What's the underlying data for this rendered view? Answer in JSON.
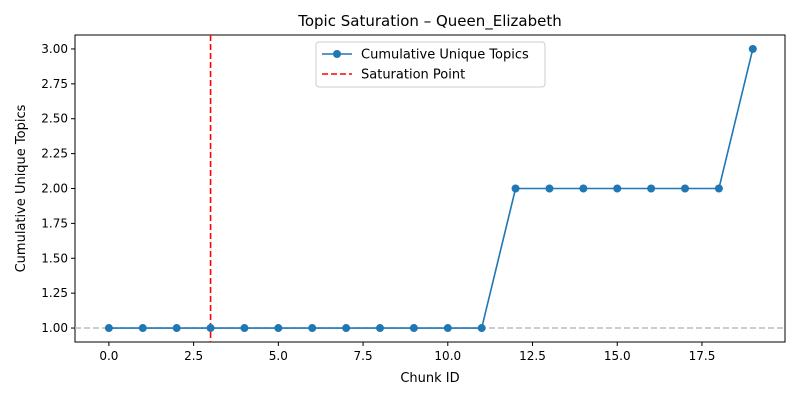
{
  "chart_data": {
    "type": "line",
    "title": "Topic Saturation – Queen_Elizabeth",
    "xlabel": "Chunk ID",
    "ylabel": "Cumulative Unique Topics",
    "xlim": [
      -1.0,
      19.95
    ],
    "ylim": [
      0.9,
      3.1
    ],
    "xticks": [
      0.0,
      2.5,
      5.0,
      7.5,
      10.0,
      12.5,
      15.0,
      17.5
    ],
    "xtick_labels": [
      "0.0",
      "2.5",
      "5.0",
      "7.5",
      "10.0",
      "12.5",
      "15.0",
      "17.5"
    ],
    "yticks": [
      1.0,
      1.25,
      1.5,
      1.75,
      2.0,
      2.25,
      2.5,
      2.75,
      3.0
    ],
    "ytick_labels": [
      "1.00",
      "1.25",
      "1.50",
      "1.75",
      "2.00",
      "2.25",
      "2.50",
      "2.75",
      "3.00"
    ],
    "grid": false,
    "legend_position": "top-center",
    "series": [
      {
        "name": "Cumulative Unique Topics",
        "color": "#1f77b4",
        "marker": "circle",
        "x": [
          0,
          1,
          2,
          3,
          4,
          5,
          6,
          7,
          8,
          9,
          10,
          11,
          12,
          13,
          14,
          15,
          16,
          17,
          18,
          19
        ],
        "y": [
          1,
          1,
          1,
          1,
          1,
          1,
          1,
          1,
          1,
          1,
          1,
          1,
          2,
          2,
          2,
          2,
          2,
          2,
          2,
          3
        ]
      }
    ],
    "reference_lines": [
      {
        "name": "Saturation Point",
        "orientation": "vertical",
        "value": 3,
        "color": "#ff0000",
        "style": "dashed",
        "in_legend": true
      },
      {
        "name": "",
        "orientation": "horizontal",
        "value": 1.0,
        "color": "#bbbbbb",
        "style": "dashed",
        "in_legend": false
      }
    ]
  }
}
